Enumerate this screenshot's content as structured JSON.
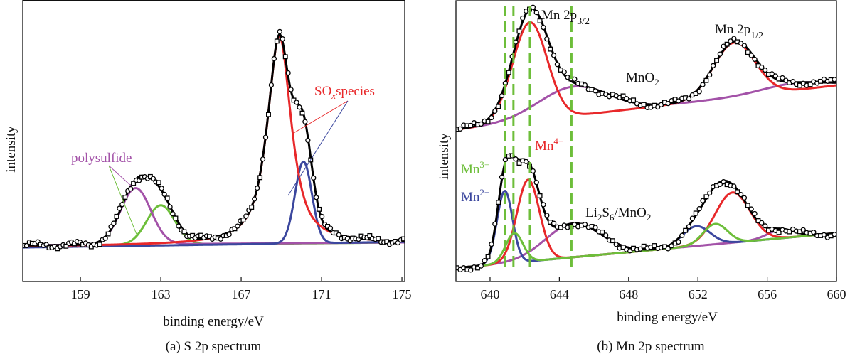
{
  "colors": {
    "envelope": "#000000",
    "red": "#e8282a",
    "blue": "#3b479e",
    "green": "#6dbe3a",
    "purple": "#a352a8",
    "marker": "#000000"
  },
  "chart_data": [
    {
      "id": "a",
      "type": "line",
      "caption": "(a) S 2p spectrum",
      "xlabel": "binding energy/eV",
      "ylabel": "intensity",
      "xlim": [
        156.13,
        175.14
      ],
      "ylim": [
        0,
        100
      ],
      "xticks": [
        159,
        163,
        167,
        171,
        175
      ],
      "xtick_labels": [
        "159",
        "163",
        "167",
        "171",
        "175"
      ],
      "envelope": {
        "baseline": [
          12.6,
          13.6
        ]
      },
      "markers_step": 0.14,
      "components": [
        {
          "name": "polysulfide-green",
          "color": "green",
          "baseline": [
            12.6,
            13.9
          ],
          "peaks": [
            {
              "center": 163.0,
              "height": 14,
              "sigma": 0.7,
              "lorentz_frac": 0
            }
          ]
        },
        {
          "name": "polysulfide-purple",
          "color": "purple",
          "baseline": [
            12.9,
            13.9
          ],
          "peaks": [
            {
              "center": 161.75,
              "height": 20,
              "sigma": 0.75,
              "lorentz_frac": 0
            }
          ]
        },
        {
          "name": "sox-blue",
          "color": "blue",
          "baseline": [
            12.1,
            14.1
          ],
          "peaks": [
            {
              "center": 170.1,
              "height": 29,
              "sigma": 0.42,
              "lorentz_frac": 0
            }
          ]
        },
        {
          "name": "sox-red",
          "color": "red",
          "baseline": [
            12.4,
            13.6
          ],
          "peaks": [
            {
              "center": 168.9,
              "height": 74,
              "sigma": 0.6,
              "lorentz_frac": 0.8
            }
          ]
        }
      ],
      "annotations": {
        "polysulfide": {
          "text": "polysulfide",
          "color": "purple"
        },
        "sox": {
          "main": "SO",
          "sub": "x",
          "rest": "species",
          "color": "red"
        }
      }
    },
    {
      "id": "b",
      "type": "line",
      "caption": "(b) Mn 2p spectrum",
      "xlabel": "binding energy/eV",
      "ylabel": "intensity",
      "xlim": [
        638.03,
        660
      ],
      "ylim": [
        0,
        100
      ],
      "xticks": [
        640,
        644,
        648,
        652,
        656,
        660
      ],
      "xtick_labels": [
        "640",
        "644",
        "648",
        "652",
        "656",
        "660"
      ],
      "reference_lines": [
        640.86,
        641.35,
        642.3,
        644.7
      ],
      "markers_step": 0.2,
      "spectra": [
        {
          "name": "MnO2",
          "envelope": {
            "baseline": [
              54.0,
              69.7
            ]
          },
          "components": [
            {
              "name": "mno2-purple",
              "color": "purple",
              "baseline": [
                54.0,
                69.7
              ],
              "peaks": [
                {
                  "center": 644.8,
                  "height": 10.4,
                  "sigma": 2.0
                },
                {
                  "center": 657.5,
                  "height": 2.5,
                  "sigma": 1.8
                }
              ]
            },
            {
              "name": "mno2-red",
              "color": "red",
              "baseline": [
                54.0,
                69.7
              ],
              "peaks": [
                {
                  "center": 642.3,
                  "height": 35,
                  "sigma": 1.0
                },
                {
                  "center": 654.1,
                  "height": 19.4,
                  "sigma": 1.2
                }
              ]
            }
          ]
        },
        {
          "name": "Li2S6/MnO2",
          "envelope": {
            "baseline": [
              4.8,
              17.2
            ]
          },
          "components": [
            {
              "name": "li2s6-purple",
              "color": "purple",
              "baseline": [
                4.8,
                17.2
              ],
              "peaks": [
                {
                  "center": 644.8,
                  "height": 12,
                  "sigma": 1.6
                },
                {
                  "center": 656.8,
                  "height": 3,
                  "sigma": 0.8
                }
              ]
            },
            {
              "name": "li2s6-blue",
              "color": "blue",
              "baseline": [
                4.8,
                17.2
              ],
              "peaks": [
                {
                  "center": 640.85,
                  "height": 25.8,
                  "sigma": 0.45
                },
                {
                  "center": 651.9,
                  "height": 7,
                  "sigma": 0.8
                }
              ]
            },
            {
              "name": "li2s6-red",
              "color": "red",
              "baseline": [
                4.8,
                17.2
              ],
              "peaks": [
                {
                  "center": 642.2,
                  "height": 29,
                  "sigma": 0.65
                },
                {
                  "center": 654.0,
                  "height": 17.8,
                  "sigma": 1.0
                }
              ]
            },
            {
              "name": "li2s6-green",
              "color": "green",
              "baseline": [
                4.8,
                17.2
              ],
              "peaks": [
                {
                  "center": 641.4,
                  "height": 10.5,
                  "sigma": 0.5
                },
                {
                  "center": 653.0,
                  "height": 7.2,
                  "sigma": 0.7
                }
              ]
            }
          ]
        }
      ],
      "annotations": {
        "mn2p32": {
          "main": "Mn  2p",
          "sub": "3/2"
        },
        "mn2p12": {
          "main": "Mn 2p",
          "sub": "1/2"
        },
        "mno2": {
          "main": "MnO",
          "sub": "2"
        },
        "mn4": {
          "main": "Mn",
          "sup": "4+",
          "color": "red"
        },
        "mn3": {
          "main": "Mn",
          "sup": "3+",
          "color": "green"
        },
        "mn2": {
          "main": "Mn",
          "sup": "2+",
          "color": "blue"
        },
        "li2s6": {
          "p1": "Li",
          "s1": "2",
          "p2": "S",
          "s2": "6",
          "p3": "/MnO",
          "s3": "2"
        }
      }
    }
  ]
}
